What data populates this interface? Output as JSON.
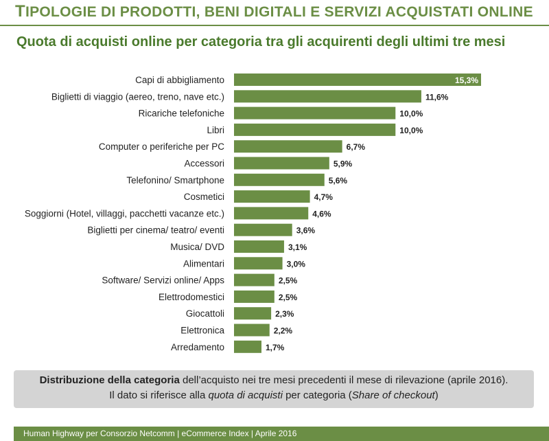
{
  "header": {
    "title_cap": "T",
    "title_rest": "IPOLOGIE DI PRODOTTI, BENI DIGITALI E SERVIZI ACQUISTATI ONLINE",
    "subtitle": "Quota di acquisti online per categoria tra gli acquirenti degli ultimi tre mesi"
  },
  "colors": {
    "bar": "#6b8e45",
    "accent": "#6b8e45"
  },
  "chart_data": {
    "type": "bar",
    "orientation": "horizontal",
    "categories": [
      "Capi di abbigliamento",
      "Biglietti di viaggio (aereo, treno, nave etc.)",
      "Ricariche telefoniche",
      "Libri",
      "Computer o periferiche per PC",
      "Accessori",
      "Telefonino/ Smartphone",
      "Cosmetici",
      "Soggiorni (Hotel, villaggi, pacchetti vacanze etc.)",
      "Biglietti per cinema/ teatro/ eventi",
      "Musica/ DVD",
      "Alimentari",
      "Software/ Servizi online/ Apps",
      "Elettrodomestici",
      "Giocattoli",
      "Elettronica",
      "Arredamento"
    ],
    "values": [
      15.3,
      11.6,
      10.0,
      10.0,
      6.7,
      5.9,
      5.6,
      4.7,
      4.6,
      3.6,
      3.1,
      3.0,
      2.5,
      2.5,
      2.3,
      2.2,
      1.7
    ],
    "value_labels": [
      "15,3%",
      "11,6%",
      "10,0%",
      "10,0%",
      "6,7%",
      "5,9%",
      "5,6%",
      "4,7%",
      "4,6%",
      "3,6%",
      "3,1%",
      "3,0%",
      "2,5%",
      "2,5%",
      "2,3%",
      "2,2%",
      "1,7%"
    ],
    "xlim": [
      0,
      15.3
    ],
    "grid": false,
    "legend": "none"
  },
  "note": {
    "line1_a": "Distribuzione della categoria",
    "line1_b": " dell’acquisto nei tre mesi precedenti il mese di rilevazione (aprile 2016).",
    "line2_a": "Il dato si riferisce alla ",
    "line2_b": "quota di acquisti",
    "line2_c": " per categoria (",
    "line2_d": "Share of checkout",
    "line2_e": ")"
  },
  "footer": {
    "text": "Human Highway per Consorzio Netcomm | eCommerce Index |  Aprile 2016"
  }
}
